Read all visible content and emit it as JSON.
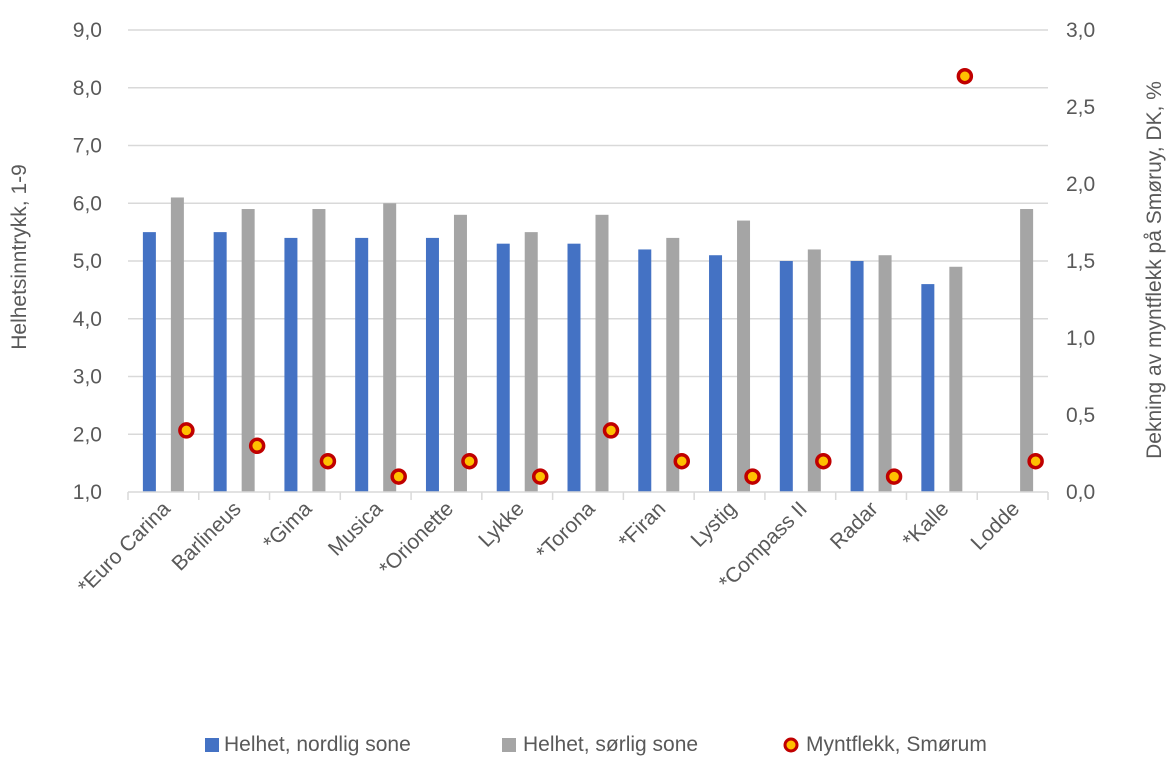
{
  "chart_data": {
    "type": "bar",
    "categories": [
      "*Euro Carina",
      "Barlineus",
      "*Gima",
      "Musica",
      "*Orionette",
      "Lykke",
      "*Torona",
      "*Firan",
      "Lystig",
      "*Compass II",
      "Radar",
      "*Kalle",
      "Lodde"
    ],
    "series": [
      {
        "name": "Helhet, nordlig sone",
        "type": "bar",
        "axis": "left",
        "color": "#4472C4",
        "values": [
          5.5,
          5.5,
          5.4,
          5.4,
          5.4,
          5.3,
          5.3,
          5.2,
          5.1,
          5.0,
          5.0,
          4.6,
          null
        ]
      },
      {
        "name": "Helhet, sørlig sone",
        "type": "bar",
        "axis": "left",
        "color": "#A5A5A5",
        "values": [
          6.1,
          5.9,
          5.9,
          6.0,
          5.8,
          5.5,
          5.8,
          5.4,
          5.7,
          5.2,
          5.1,
          4.9,
          5.9
        ]
      },
      {
        "name": "Myntflekk, Smørum",
        "type": "scatter",
        "axis": "right",
        "color": "#FFC000",
        "edge_color": "#C00000",
        "values": [
          0.4,
          0.3,
          0.2,
          0.1,
          0.2,
          0.1,
          0.4,
          0.2,
          0.1,
          0.2,
          0.1,
          2.7,
          0.2
        ]
      }
    ],
    "y_left": {
      "label": "Helhetsinntrykk,  1-9",
      "range": [
        1.0,
        9.0
      ],
      "ticks": [
        "1,0",
        "2,0",
        "3,0",
        "4,0",
        "5,0",
        "6,0",
        "7,0",
        "8,0",
        "9,0"
      ]
    },
    "y_right": {
      "label": "Dekning av myntflekk på Smøruy, DK, %",
      "range": [
        0.0,
        3.0
      ],
      "ticks": [
        "0,0",
        "0,5",
        "1,0",
        "1,5",
        "2,0",
        "2,5",
        "3,0"
      ]
    },
    "grid": true,
    "legend_position": "bottom",
    "gridline_color": "#D9D9D9"
  }
}
